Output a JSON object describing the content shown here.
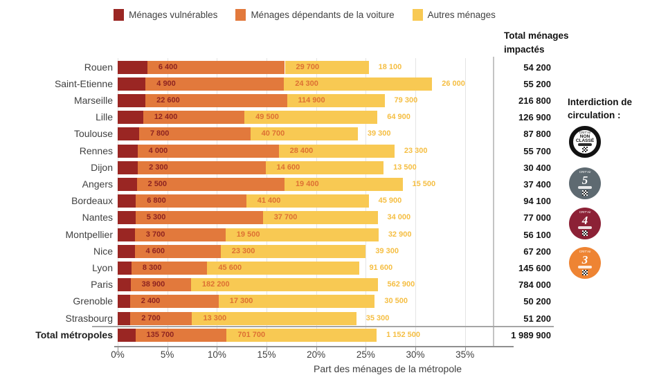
{
  "legend": {
    "items": [
      {
        "label": "Ménages vulnérables"
      },
      {
        "label": "Ménages dépendants de la voiture"
      },
      {
        "label": "Autres ménages"
      }
    ]
  },
  "totals_column": {
    "header_line1": "Total ménages",
    "header_line2": "impactés"
  },
  "rows": [
    {
      "name": "Rouen",
      "vulnerables": "6 400",
      "dependants": "29 700",
      "autres": "18 100",
      "total": "54 200"
    },
    {
      "name": "Saint-Etienne",
      "vulnerables": "4 900",
      "dependants": "24 300",
      "autres": "26 000",
      "total": "55 200"
    },
    {
      "name": "Marseille",
      "vulnerables": "22 600",
      "dependants": "114 900",
      "autres": "79 300",
      "total": "216 800"
    },
    {
      "name": "Lille",
      "vulnerables": "12 400",
      "dependants": "49 500",
      "autres": "64 900",
      "total": "126 900"
    },
    {
      "name": "Toulouse",
      "vulnerables": "7 800",
      "dependants": "40 700",
      "autres": "39 300",
      "total": "87 800"
    },
    {
      "name": "Rennes",
      "vulnerables": "4 000",
      "dependants": "28 400",
      "autres": "23 300",
      "total": "55 700"
    },
    {
      "name": "Dijon",
      "vulnerables": "2 300",
      "dependants": "14 600",
      "autres": "13 500",
      "total": "30 400"
    },
    {
      "name": "Angers",
      "vulnerables": "2 500",
      "dependants": "19 400",
      "autres": "15 500",
      "total": "37 400"
    },
    {
      "name": "Bordeaux",
      "vulnerables": "6 800",
      "dependants": "41 400",
      "autres": "45 900",
      "total": "94 100"
    },
    {
      "name": "Nantes",
      "vulnerables": "5 300",
      "dependants": "37 700",
      "autres": "34 000",
      "total": "77 000"
    },
    {
      "name": "Montpellier",
      "vulnerables": "3 700",
      "dependants": "19 500",
      "autres": "32 900",
      "total": "56 100"
    },
    {
      "name": "Nice",
      "vulnerables": "4 600",
      "dependants": "23 300",
      "autres": "39 300",
      "total": "67 200"
    },
    {
      "name": "Lyon",
      "vulnerables": "8 300",
      "dependants": "45 600",
      "autres": "91 600",
      "total": "145 600"
    },
    {
      "name": "Paris",
      "vulnerables": "38 900",
      "dependants": "182 200",
      "autres": "562 900",
      "total": "784 000"
    },
    {
      "name": "Grenoble",
      "vulnerables": "2 400",
      "dependants": "17 300",
      "autres": "30 500",
      "total": "50 200"
    },
    {
      "name": "Strasbourg",
      "vulnerables": "2 700",
      "dependants": "13 300",
      "autres": "35 300",
      "total": "51 200"
    },
    {
      "name": "Total métropoles",
      "vulnerables": "135 700",
      "dependants": "701 700",
      "autres": "1 152 500",
      "total": "1 989 900",
      "emphasis": true
    }
  ],
  "x_axis": {
    "ticks": [
      "0%",
      "5%",
      "10%",
      "15%",
      "20%",
      "25%",
      "30%",
      "35%"
    ],
    "title": "Part des ménages de la métropole"
  },
  "restriction": {
    "title": "Interdiction de circulation :",
    "badges": [
      {
        "id": "non-classe",
        "top_text": "CRIT'Air",
        "label": "NON CLASSÉ"
      },
      {
        "id": "g5",
        "top_text": "CRIT'Air",
        "number": "5"
      },
      {
        "id": "g4",
        "top_text": "CRIT'Air",
        "number": "4"
      },
      {
        "id": "g3",
        "top_text": "CRIT'Air",
        "number": "3"
      }
    ]
  },
  "colors": {
    "vulnerables": "#9a2623",
    "dependants": "#e2793c",
    "autres": "#f8c953",
    "label_vulnerables": "#8d2321",
    "label_dependants": "#dd7033",
    "label_autres": "#f5be42"
  },
  "chart_data": {
    "type": "bar",
    "orientation": "horizontal",
    "stacked": true,
    "title": "",
    "xlabel": "Part des ménages de la métropole",
    "xticks_pct": [
      0,
      5,
      10,
      15,
      20,
      25,
      30,
      35
    ],
    "xlim_pct": [
      0,
      38
    ],
    "grid": true,
    "legend_position": "top",
    "categories": [
      "Rouen",
      "Saint-Etienne",
      "Marseille",
      "Lille",
      "Toulouse",
      "Rennes",
      "Dijon",
      "Angers",
      "Bordeaux",
      "Nantes",
      "Montpellier",
      "Nice",
      "Lyon",
      "Paris",
      "Grenoble",
      "Strasbourg",
      "Total métropoles"
    ],
    "series": [
      {
        "name": "Ménages vulnérables",
        "color": "#9a2623",
        "values": [
          6400,
          4900,
          22600,
          12400,
          7800,
          4000,
          2300,
          2500,
          6800,
          5300,
          3700,
          4600,
          8300,
          38900,
          2400,
          2700,
          135700
        ]
      },
      {
        "name": "Ménages dépendants de la voiture",
        "color": "#e2793c",
        "values": [
          29700,
          24300,
          114900,
          49500,
          40700,
          28400,
          14600,
          19400,
          41400,
          37700,
          19500,
          23300,
          45600,
          182200,
          17300,
          13300,
          701700
        ]
      },
      {
        "name": "Autres ménages",
        "color": "#f8c953",
        "values": [
          18100,
          26000,
          79300,
          64900,
          39300,
          23300,
          13500,
          15500,
          45900,
          34000,
          32900,
          39300,
          91600,
          562900,
          30500,
          35300,
          1152500
        ]
      }
    ],
    "totals": [
      54200,
      55200,
      216800,
      126900,
      87800,
      55700,
      30400,
      37400,
      94100,
      77000,
      56100,
      67200,
      145600,
      784000,
      50200,
      51200,
      1989900
    ],
    "share_pct": [
      [
        2.99,
        13.86,
        8.45
      ],
      [
        2.81,
        13.95,
        14.93
      ],
      [
        2.8,
        14.26,
        9.84
      ],
      [
        2.56,
        10.22,
        13.4
      ],
      [
        2.15,
        11.22,
        10.83
      ],
      [
        2.0,
        14.23,
        11.67
      ],
      [
        2.03,
        12.87,
        11.9
      ],
      [
        1.92,
        14.89,
        11.9
      ],
      [
        1.83,
        11.13,
        12.34
      ],
      [
        1.8,
        12.83,
        11.57
      ],
      [
        1.73,
        9.14,
        15.42
      ],
      [
        1.71,
        8.67,
        14.62
      ],
      [
        1.39,
        7.64,
        15.35
      ],
      [
        1.3,
        6.09,
        18.81
      ],
      [
        1.24,
        8.93,
        15.74
      ],
      [
        1.27,
        6.23,
        16.55
      ],
      [
        1.78,
        9.2,
        15.12
      ]
    ]
  }
}
